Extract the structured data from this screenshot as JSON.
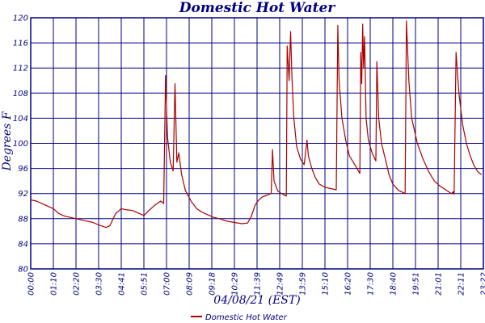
{
  "chart_data": {
    "type": "line",
    "title": "Domestic Hot Water",
    "xlabel": "04/08/21 (EST)",
    "ylabel": "Degrees F",
    "ylim": [
      80,
      120
    ],
    "xlim_hours": [
      0,
      24
    ],
    "yticks": [
      "80",
      "84",
      "88",
      "92",
      "96",
      "100",
      "104",
      "108",
      "112",
      "116",
      "120"
    ],
    "xticks": [
      "00:00",
      "01:10",
      "02:20",
      "03:30",
      "04:41",
      "05:51",
      "07:00",
      "08:09",
      "09:18",
      "10:29",
      "11:39",
      "12:49",
      "13:59",
      "15:10",
      "16:20",
      "17:30",
      "18:40",
      "19:51",
      "21:01",
      "22:11",
      "23:22"
    ],
    "grid": true,
    "legend_position": "bottom-center",
    "colors": {
      "series": "#aa0000",
      "grid": "#000080",
      "text": "#000080"
    },
    "series": [
      {
        "name": "Domestic Hot Water",
        "x": [
          0.0,
          0.3,
          0.6,
          0.9,
          1.2,
          1.5,
          1.8,
          2.1,
          2.4,
          2.7,
          3.0,
          3.3,
          3.6,
          3.8,
          4.0,
          4.2,
          4.5,
          4.8,
          5.1,
          5.4,
          5.7,
          6.0,
          6.3,
          6.6,
          6.9,
          7.05,
          7.15,
          7.25,
          7.4,
          7.55,
          7.65,
          7.75,
          7.85,
          8.0,
          8.2,
          8.5,
          8.8,
          9.1,
          9.4,
          9.7,
          10.0,
          10.4,
          10.8,
          11.2,
          11.5,
          11.7,
          11.9,
          12.1,
          12.3,
          12.5,
          12.75,
          12.82,
          12.9,
          13.1,
          13.3,
          13.55,
          13.6,
          13.7,
          13.78,
          13.85,
          13.95,
          14.1,
          14.3,
          14.5,
          14.65,
          14.72,
          14.9,
          15.1,
          15.3,
          15.6,
          15.9,
          16.2,
          16.28,
          16.35,
          16.5,
          16.7,
          16.9,
          17.2,
          17.45,
          17.5,
          17.55,
          17.6,
          17.65,
          17.7,
          17.78,
          17.9,
          18.1,
          18.3,
          18.35,
          18.45,
          18.6,
          18.8,
          19.0,
          19.2,
          19.5,
          19.85,
          19.92,
          20.05,
          20.2,
          20.5,
          20.8,
          21.1,
          21.4,
          21.7,
          22.0,
          22.3,
          22.4,
          22.45,
          22.55,
          22.7,
          22.9,
          23.1,
          23.3,
          23.5,
          23.7,
          23.9
        ],
        "values": [
          91.0,
          90.8,
          90.4,
          90.0,
          89.6,
          88.8,
          88.4,
          88.2,
          88.0,
          87.8,
          87.6,
          87.4,
          87.0,
          86.8,
          86.6,
          86.9,
          88.8,
          89.6,
          89.4,
          89.3,
          88.9,
          88.5,
          89.4,
          90.2,
          90.8,
          90.4,
          110.8,
          101.0,
          97.0,
          95.6,
          109.5,
          97.0,
          98.5,
          95.0,
          92.5,
          90.8,
          89.6,
          89.0,
          88.6,
          88.2,
          88.0,
          87.6,
          87.4,
          87.2,
          87.3,
          88.4,
          90.2,
          91.0,
          91.5,
          91.7,
          92.0,
          99.0,
          94.0,
          92.4,
          92.0,
          91.6,
          115.5,
          110.0,
          117.8,
          110.5,
          104.0,
          99.5,
          97.5,
          96.6,
          100.5,
          98.0,
          96.0,
          94.5,
          93.5,
          93.0,
          92.8,
          92.6,
          118.8,
          110.0,
          104.0,
          100.5,
          98.0,
          96.5,
          95.2,
          114.5,
          109.5,
          119.0,
          112.0,
          117.0,
          104.0,
          100.5,
          98.5,
          97.2,
          113.0,
          104.0,
          100.0,
          97.5,
          95.0,
          93.5,
          92.5,
          92.0,
          119.5,
          110.0,
          104.0,
          100.0,
          97.5,
          95.5,
          94.0,
          93.2,
          92.6,
          92.0,
          92.3,
          91.9,
          114.5,
          108.0,
          103.0,
          100.0,
          98.0,
          96.5,
          95.5,
          95.0
        ]
      }
    ]
  }
}
